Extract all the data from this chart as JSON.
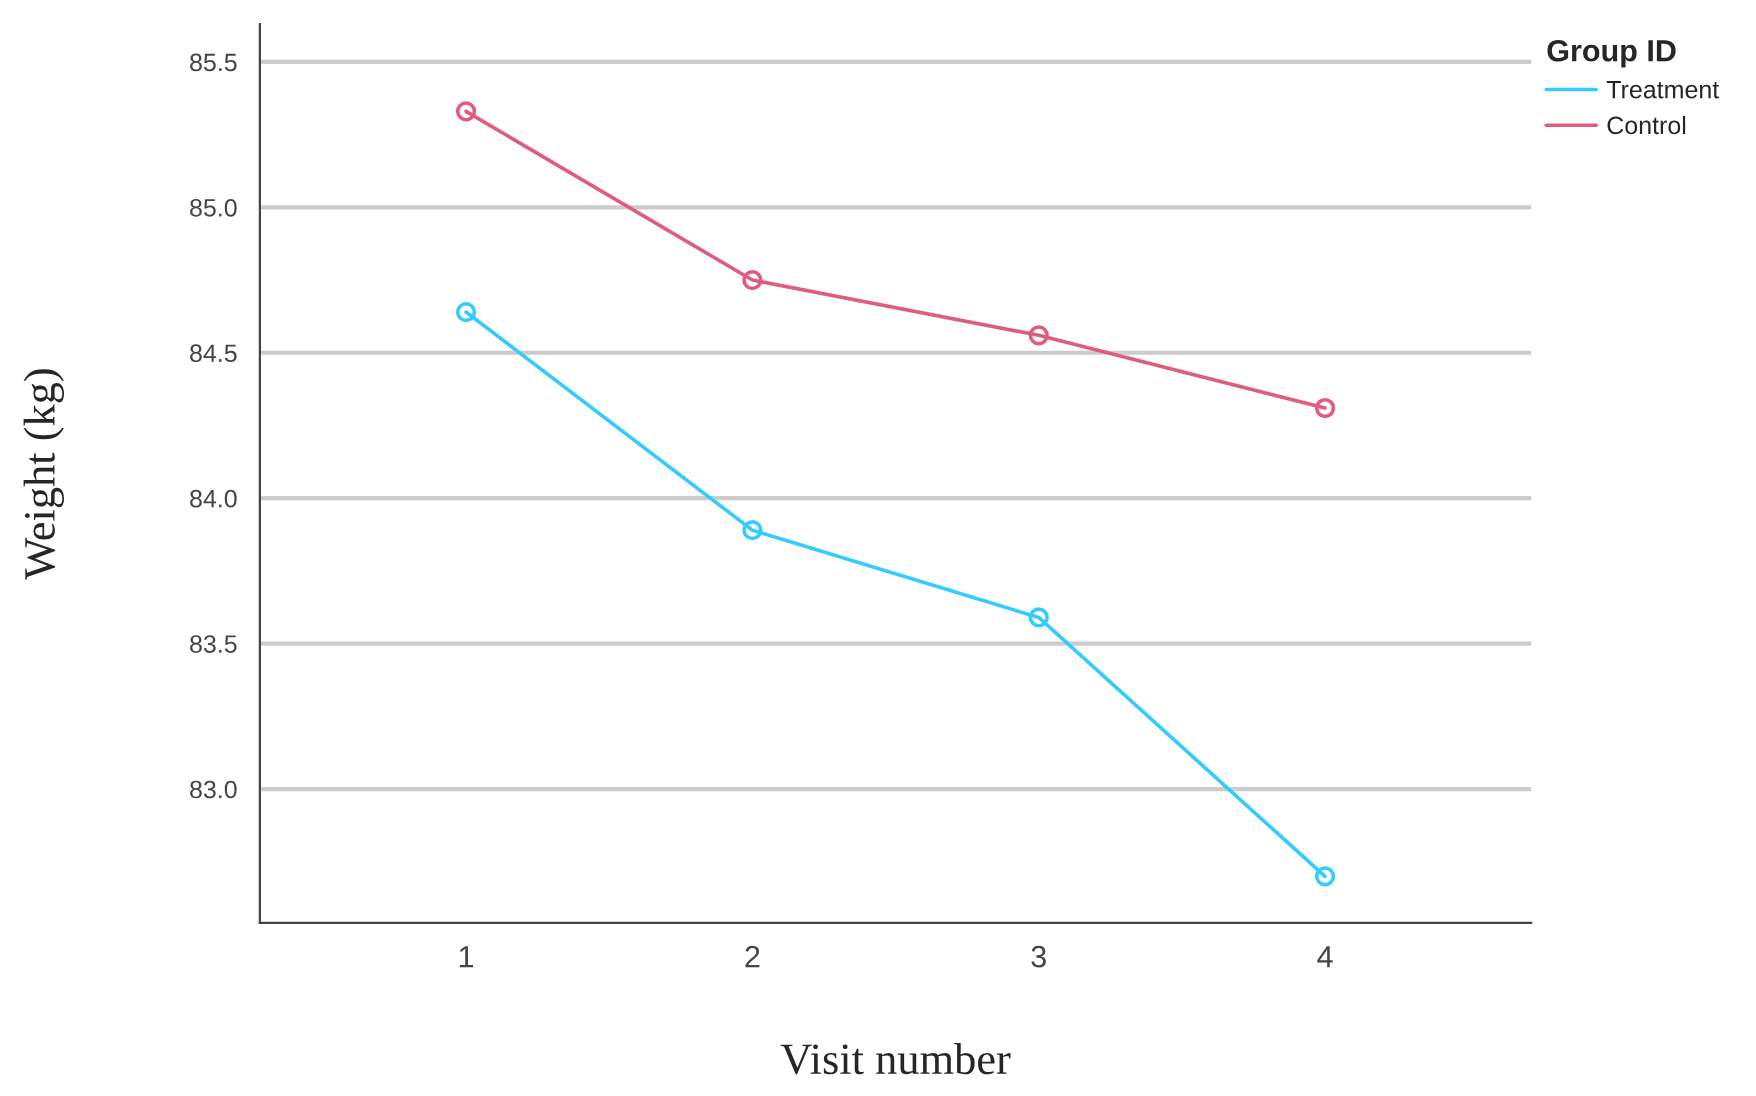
{
  "chart_data": {
    "type": "line",
    "xlabel": "Visit number",
    "ylabel": "Weight (kg)",
    "legend_title": "Group ID",
    "x": [
      1,
      2,
      3,
      4
    ],
    "series": [
      {
        "name": "Treatment",
        "color": "#33ccff",
        "values": [
          84.64,
          83.89,
          83.59,
          82.7
        ]
      },
      {
        "name": "Control",
        "color": "#e05c7e",
        "values": [
          85.33,
          84.75,
          84.56,
          84.31
        ]
      }
    ],
    "xlim": [
      0.28,
      4.72
    ],
    "ylim": [
      82.54,
      85.63
    ],
    "xticks": [
      1,
      2,
      3,
      4
    ],
    "yticks": [
      {
        "value": 83.0,
        "label": "83.0"
      },
      {
        "value": 83.5,
        "label": "83.5"
      },
      {
        "value": 84.0,
        "label": "84.0"
      },
      {
        "value": 84.5,
        "label": "84.5"
      },
      {
        "value": 85.0,
        "label": "85.0"
      },
      {
        "value": 85.5,
        "label": "85.5"
      }
    ],
    "grid": "y",
    "legend": "top right",
    "marker": "circle",
    "line_style": "solid"
  }
}
